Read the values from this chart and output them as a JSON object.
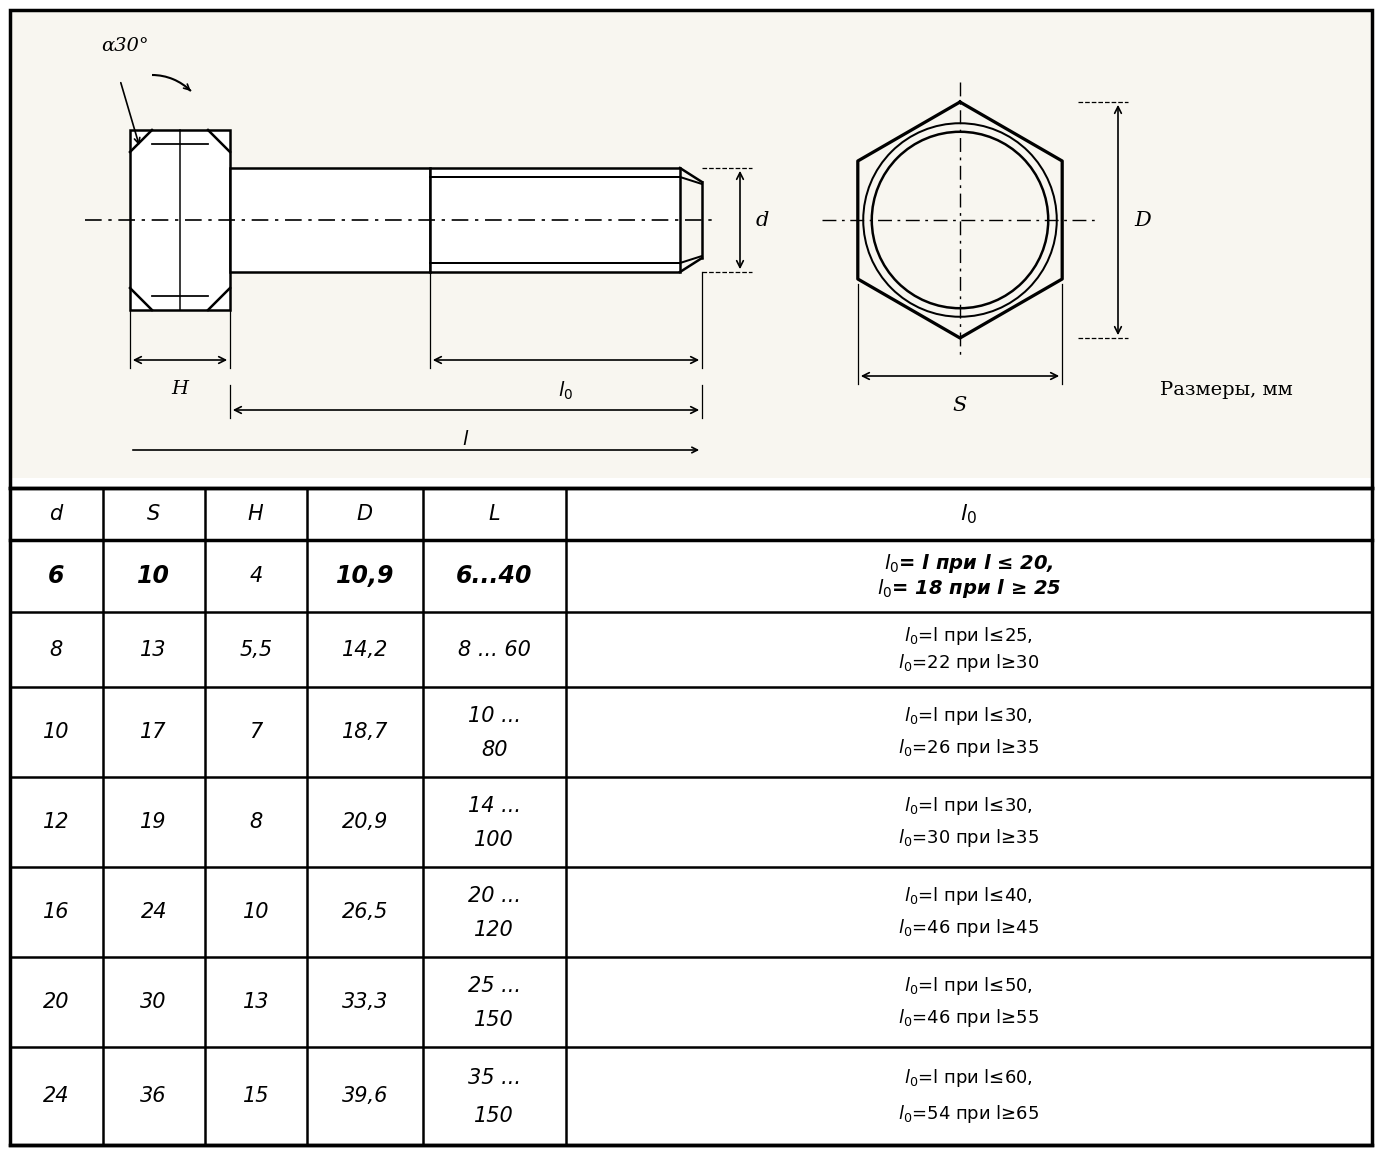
{
  "bg_color": "#ffffff",
  "draw_bg": "#f8f6f0",
  "black": "#000000",
  "razm_text": "Размеры, мм",
  "table_headers": [
    "d",
    "S",
    "H",
    "D",
    "L",
    "l0"
  ],
  "table_data": [
    [
      "6",
      "10",
      "4",
      "10,9",
      "6...40",
      "l0= l при l ≤ 20,\nl0= 18 при l ≥ 25"
    ],
    [
      "8",
      "13",
      "5,5",
      "14,2",
      "8 ... 60",
      "l0=l при l≤25,\nl0=22 при l≥30"
    ],
    [
      "10",
      "17",
      "7",
      "18,7",
      "10 ...\n80",
      "l0=l при l≤30,\nl0=26 при l≥35"
    ],
    [
      "12",
      "19",
      "8",
      "20,9",
      "14 ...\n100",
      "l0=l при l≤30,\nl0=30 при l≥35"
    ],
    [
      "16",
      "24",
      "10",
      "26,5",
      "20 ...\n120",
      "l0=l при l≤40,\nl0=46 при l≥45"
    ],
    [
      "20",
      "30",
      "13",
      "33,3",
      "25 ...\n150",
      "l0=l при l≤50,\nl0=46 при l≥55"
    ],
    [
      "24",
      "36",
      "15",
      "39,6",
      "35 ...\n150",
      "l0=l при l≤60,\nl0=54 при l≥65"
    ]
  ]
}
